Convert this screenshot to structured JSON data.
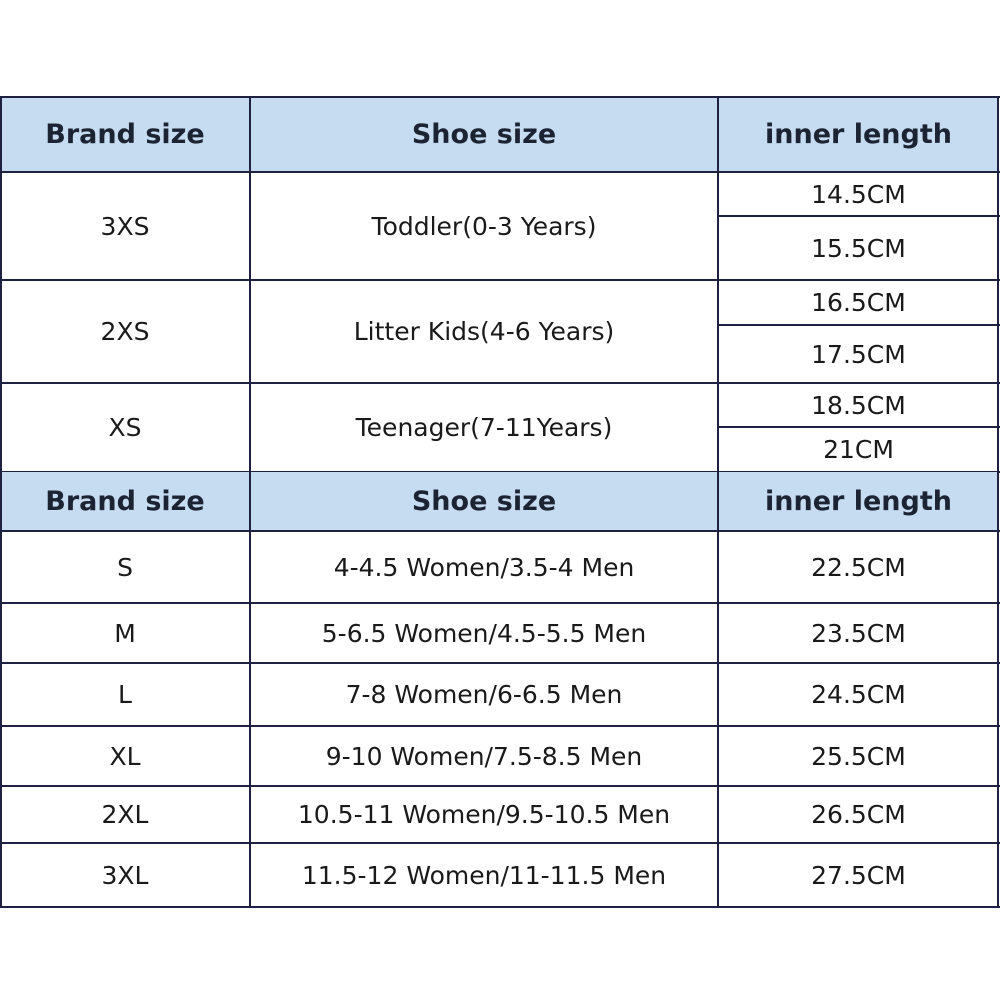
{
  "header": {
    "brand": "Brand size",
    "shoe": "Shoe size",
    "inner": "inner length"
  },
  "kids": [
    {
      "brand": "3XS",
      "shoe": "Toddler(0-3 Years)",
      "lengths": [
        "14.5CM",
        "15.5CM"
      ]
    },
    {
      "brand": "2XS",
      "shoe": "Litter Kids(4-6 Years)",
      "lengths": [
        "16.5CM",
        "17.5CM"
      ]
    },
    {
      "brand": "XS",
      "shoe": "Teenager(7-11Years)",
      "lengths": [
        "18.5CM",
        "21CM"
      ]
    }
  ],
  "adults": [
    {
      "brand": "S",
      "shoe": "4-4.5 Women/3.5-4 Men",
      "length": "22.5CM"
    },
    {
      "brand": "M",
      "shoe": "5-6.5 Women/4.5-5.5 Men",
      "length": "23.5CM"
    },
    {
      "brand": "L",
      "shoe": "7-8 Women/6-6.5 Men",
      "length": "24.5CM"
    },
    {
      "brand": "XL",
      "shoe": "9-10 Women/7.5-8.5 Men",
      "length": "25.5CM"
    },
    {
      "brand": "2XL",
      "shoe": "10.5-11 Women/9.5-10.5 Men",
      "length": "26.5CM"
    },
    {
      "brand": "3XL",
      "shoe": "11.5-12 Women/11-11.5 Men",
      "length": "27.5CM"
    }
  ],
  "colors": {
    "header_bg": "#c6dcf0",
    "border": "#1e2240"
  }
}
